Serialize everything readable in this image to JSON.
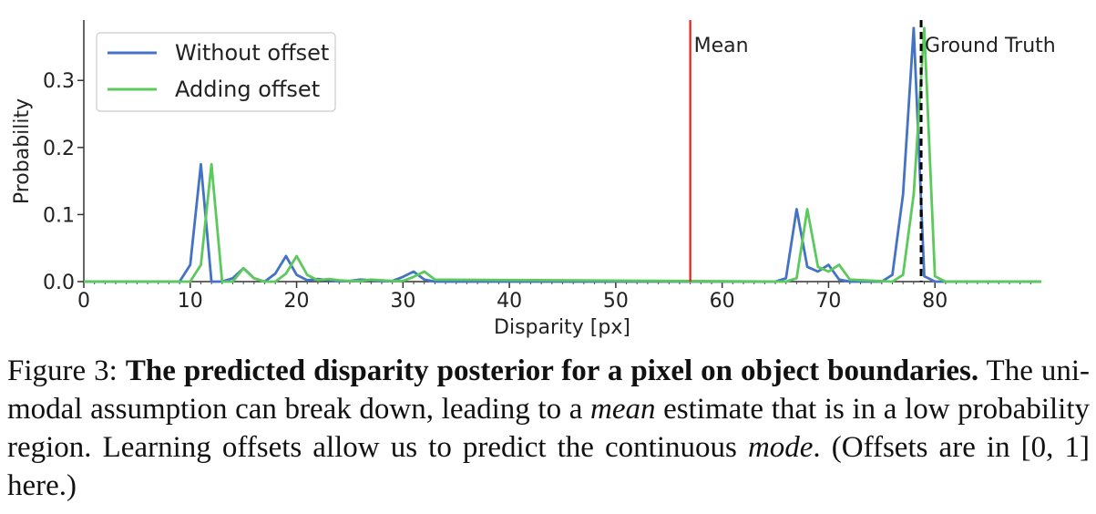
{
  "chart_data": {
    "type": "line",
    "xlabel": "Disparity [px]",
    "ylabel": "Probability",
    "xlim": [
      0,
      90
    ],
    "ylim": [
      0,
      0.39
    ],
    "xticks": [
      0,
      10,
      20,
      30,
      40,
      50,
      60,
      70,
      80
    ],
    "xtick_labels": [
      "0",
      "10",
      "20",
      "30",
      "40",
      "50",
      "60",
      "70",
      "80"
    ],
    "yticks": [
      0.0,
      0.1,
      0.2,
      0.3
    ],
    "ytick_labels": [
      "0.0",
      "0.1",
      "0.2",
      "0.3"
    ],
    "grid": false,
    "legend_position": "top-left",
    "series": [
      {
        "name": "Without offset",
        "color": "#4472c4",
        "x": [
          0,
          9,
          10,
          11,
          12,
          13,
          14,
          15,
          16,
          17,
          18,
          19,
          20,
          21,
          22,
          23,
          24,
          25,
          26,
          27,
          28,
          29,
          30,
          31,
          32,
          33,
          65,
          66,
          67,
          68,
          69,
          70,
          71,
          72,
          75,
          76,
          77,
          78,
          79,
          80,
          90
        ],
        "y": [
          0,
          0,
          0.025,
          0.175,
          0,
          0,
          0.005,
          0.02,
          0.005,
          0,
          0.012,
          0.038,
          0.01,
          0.002,
          0.004,
          0.002,
          0.001,
          0.001,
          0.003,
          0.002,
          0.001,
          0.001,
          0.007,
          0.015,
          0.003,
          0,
          0,
          0.005,
          0.108,
          0.022,
          0.015,
          0.025,
          0.003,
          0,
          0,
          0.01,
          0.13,
          0.378,
          0.008,
          0,
          0
        ]
      },
      {
        "name": "Adding offset",
        "color": "#5cc95c",
        "x": [
          0,
          10,
          11,
          12,
          13,
          14,
          15,
          16,
          17,
          18,
          19,
          20,
          21,
          22,
          23,
          24,
          25,
          26,
          27,
          28,
          29,
          30,
          31,
          32,
          33,
          66,
          67,
          68,
          69,
          70,
          71,
          72,
          76,
          77,
          78,
          79,
          80,
          81,
          90
        ],
        "y": [
          0,
          0,
          0.025,
          0.175,
          0,
          0,
          0.02,
          0.005,
          0,
          0,
          0.012,
          0.038,
          0.01,
          0.002,
          0.004,
          0.002,
          0.001,
          0.001,
          0.003,
          0.002,
          0.001,
          0.001,
          0.007,
          0.015,
          0.003,
          0,
          0.005,
          0.108,
          0.022,
          0.015,
          0.025,
          0.003,
          0,
          0.01,
          0.13,
          0.378,
          0.008,
          0,
          0
        ]
      }
    ],
    "vlines": [
      {
        "label": "Mean",
        "x": 57,
        "color": "#e02020",
        "style": "solid"
      },
      {
        "label": "Ground Truth",
        "x": 78.7,
        "color": "#000000",
        "style": "dashed"
      }
    ]
  },
  "caption": {
    "prefix": "Figure 3: ",
    "bold": "The predicted disparity posterior for a pixel on object boundaries.",
    "text1": " The uni-modal assumption can break down, leading to a ",
    "italic1": "mean",
    "text2": " estimate that is in a low probability region.  Learning offsets allow us to predict the continuous ",
    "italic2": "mode",
    "text3": ". (Offsets are in [0, 1] here.)"
  }
}
